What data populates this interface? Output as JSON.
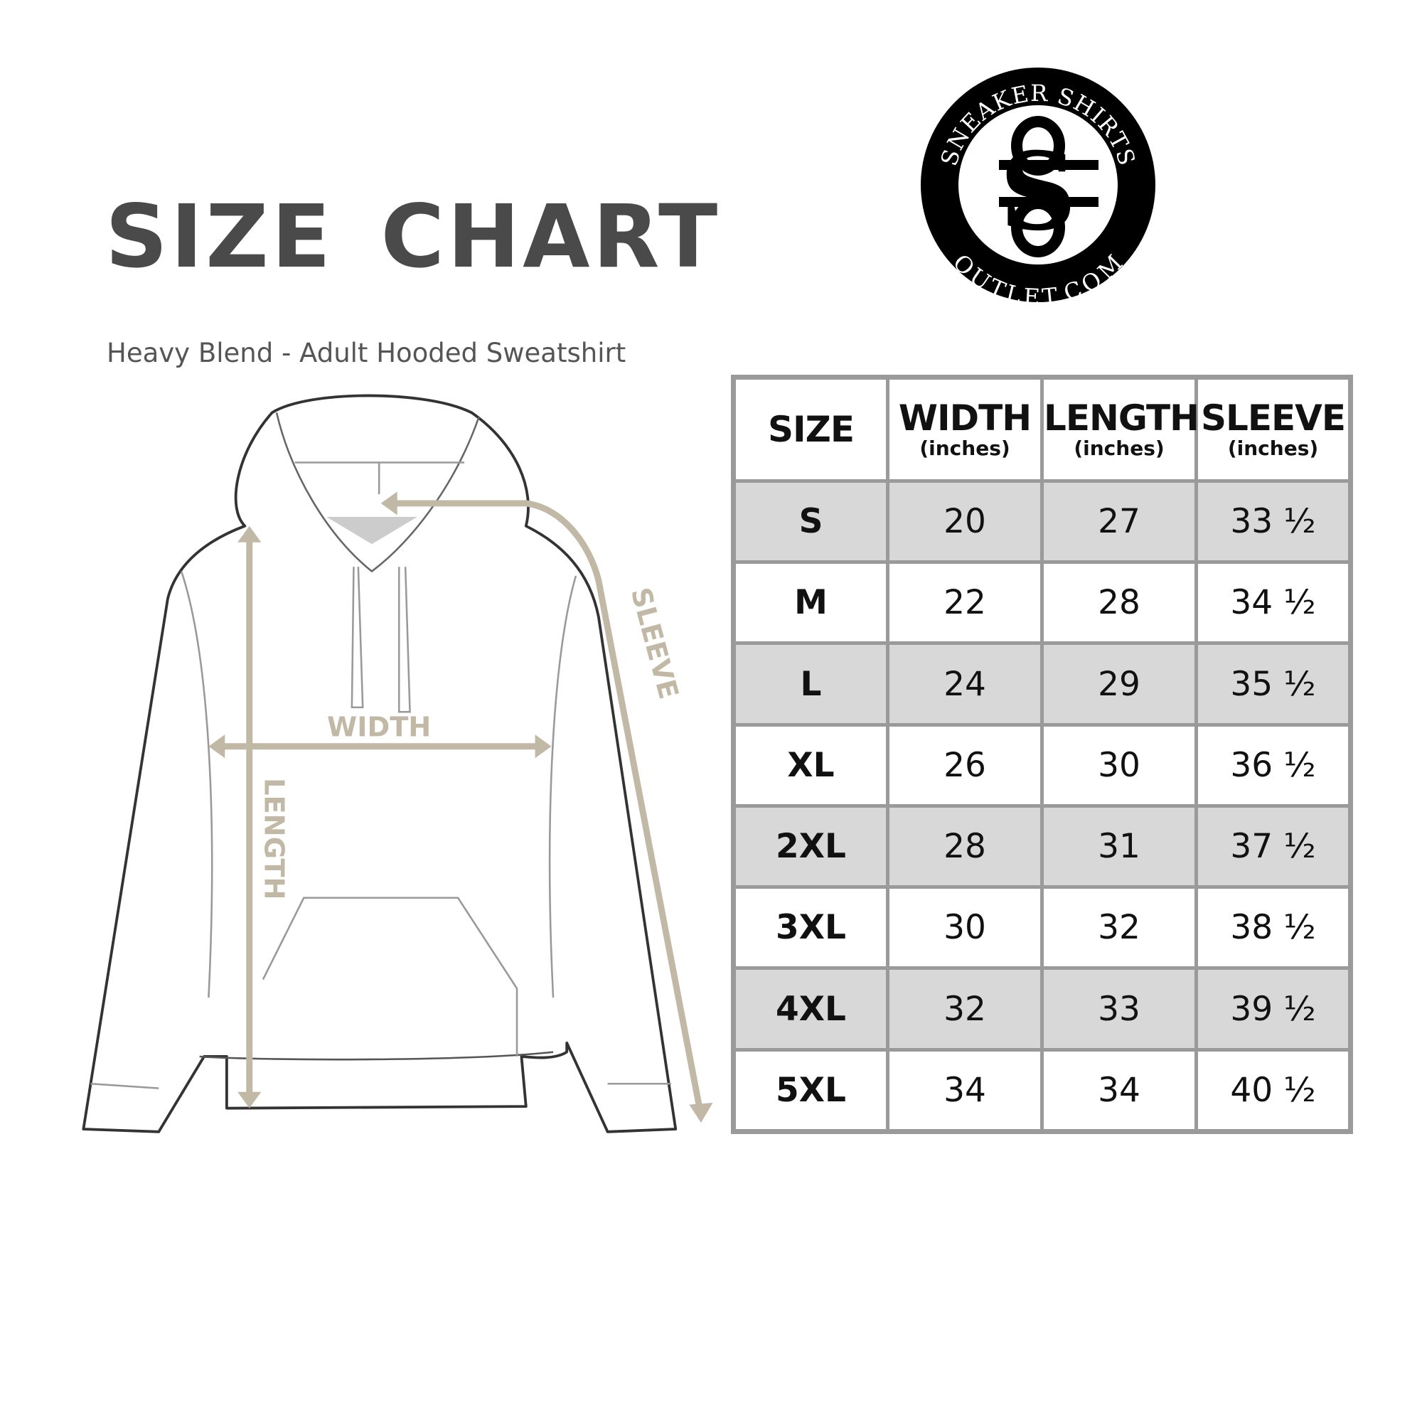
{
  "header": {
    "title": "SIZE CHART",
    "subtitle": "Heavy Blend - Adult Hooded Sweatshirt"
  },
  "logo": {
    "text_top": "SNEAKER SHIRTS",
    "text_bottom": "OUTLET.COM",
    "monogram": "SS"
  },
  "diagram": {
    "labels": {
      "width": "WIDTH",
      "length": "LENGTH",
      "sleeve": "SLEEVE"
    },
    "accent_color": "#c2b8a6"
  },
  "table": {
    "columns": [
      {
        "label": "SIZE",
        "unit": ""
      },
      {
        "label": "WIDTH",
        "unit": "(inches)"
      },
      {
        "label": "LENGTH",
        "unit": "(inches)"
      },
      {
        "label": "SLEEVE",
        "unit": "(inches)"
      }
    ],
    "rows": [
      [
        "S",
        "20",
        "27",
        "33 ½"
      ],
      [
        "M",
        "22",
        "28",
        "34 ½"
      ],
      [
        "L",
        "24",
        "29",
        "35 ½"
      ],
      [
        "XL",
        "26",
        "30",
        "36 ½"
      ],
      [
        "2XL",
        "28",
        "31",
        "37 ½"
      ],
      [
        "3XL",
        "30",
        "32",
        "38 ½"
      ],
      [
        "4XL",
        "32",
        "33",
        "39 ½"
      ],
      [
        "5XL",
        "34",
        "34",
        "40 ½"
      ]
    ]
  }
}
